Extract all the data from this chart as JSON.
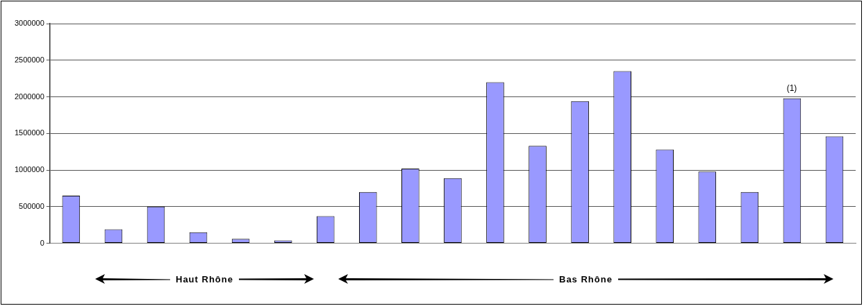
{
  "chart_data": {
    "type": "bar",
    "categories": [
      null,
      null,
      null,
      null,
      null,
      null,
      null,
      null,
      null,
      null,
      null,
      null,
      null,
      null,
      null,
      null,
      null,
      null,
      null
    ],
    "values": [
      650000,
      190000,
      500000,
      150000,
      60000,
      40000,
      370000,
      700000,
      1020000,
      890000,
      2200000,
      1330000,
      1940000,
      2350000,
      1280000,
      980000,
      700000,
      1980000,
      1460000
    ],
    "color": "#9999ff",
    "ylim": [
      0,
      3000000
    ],
    "yticks": [
      0,
      500000,
      1000000,
      1500000,
      2000000,
      2500000,
      3000000
    ],
    "grid": "y",
    "annotations": [
      "Haut Rhône",
      "Bas Rhône",
      "(1)"
    ]
  }
}
